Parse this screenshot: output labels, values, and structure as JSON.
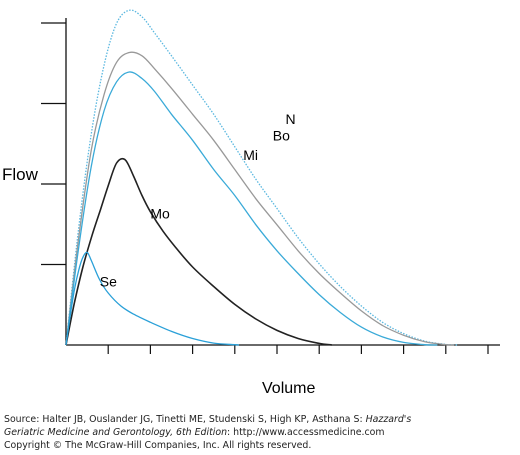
{
  "chart_data": {
    "type": "line",
    "title": "",
    "xlabel": "Volume",
    "ylabel": "Flow",
    "xlim": [
      0,
      10
    ],
    "ylim": [
      0,
      10
    ],
    "grid": false,
    "series": [
      {
        "name": "N",
        "color": "#5bb8e0",
        "dashed": true,
        "x": [
          0,
          0.3,
          0.6,
          0.9,
          1.2,
          1.5,
          1.8,
          2.1,
          2.5,
          3.0,
          3.5,
          4.0,
          4.5,
          5.0,
          5.5,
          6.0,
          6.5,
          7.0,
          7.5,
          8.0,
          8.5,
          9.0,
          9.3
        ],
        "y": [
          0,
          3.6,
          6.5,
          8.6,
          9.9,
          10.3,
          10.1,
          9.6,
          8.9,
          8.0,
          7.1,
          6.1,
          5.1,
          4.2,
          3.3,
          2.5,
          1.8,
          1.2,
          0.7,
          0.35,
          0.12,
          0.02,
          0
        ]
      },
      {
        "name": "Bo",
        "color": "#999999",
        "dashed": false,
        "x": [
          0,
          0.3,
          0.6,
          0.9,
          1.2,
          1.5,
          1.8,
          2.1,
          2.5,
          3.0,
          3.5,
          4.0,
          4.5,
          5.0,
          5.5,
          6.0,
          6.5,
          7.0,
          7.5,
          8.0,
          8.5,
          9.0,
          9.2
        ],
        "y": [
          0,
          3.3,
          6.0,
          7.7,
          8.7,
          9.0,
          8.9,
          8.5,
          7.9,
          7.1,
          6.3,
          5.4,
          4.5,
          3.7,
          2.9,
          2.2,
          1.6,
          1.05,
          0.6,
          0.3,
          0.1,
          0.01,
          0
        ]
      },
      {
        "name": "Mi",
        "color": "#3aaad8",
        "dashed": false,
        "x": [
          0,
          0.3,
          0.6,
          0.9,
          1.2,
          1.5,
          1.8,
          2.1,
          2.5,
          3.0,
          3.5,
          4.0,
          4.5,
          5.0,
          5.5,
          6.0,
          6.5,
          7.0,
          7.5,
          8.0,
          8.5,
          8.8
        ],
        "y": [
          0,
          3.0,
          5.5,
          7.2,
          8.1,
          8.4,
          8.2,
          7.8,
          7.1,
          6.3,
          5.4,
          4.6,
          3.7,
          2.9,
          2.2,
          1.55,
          1.0,
          0.55,
          0.25,
          0.08,
          0.01,
          0
        ]
      },
      {
        "name": "Mo",
        "color": "#222222",
        "dashed": false,
        "x": [
          0,
          0.2,
          0.4,
          0.6,
          0.8,
          1.0,
          1.2,
          1.4,
          1.6,
          1.8,
          2.0,
          2.3,
          2.6,
          3.0,
          3.5,
          4.0,
          4.5,
          5.0,
          5.5,
          6.0,
          6.3
        ],
        "y": [
          0,
          1.3,
          2.4,
          3.3,
          4.1,
          4.9,
          5.6,
          5.7,
          5.2,
          4.6,
          4.1,
          3.5,
          3.0,
          2.4,
          1.8,
          1.25,
          0.8,
          0.45,
          0.2,
          0.05,
          0
        ]
      },
      {
        "name": "Se",
        "color": "#2aa0d8",
        "dashed": false,
        "x": [
          0,
          0.1,
          0.2,
          0.3,
          0.4,
          0.5,
          0.6,
          0.8,
          1.0,
          1.3,
          1.6,
          2.0,
          2.5,
          3.0,
          3.5,
          4.0,
          4.1
        ],
        "y": [
          0,
          0.9,
          1.7,
          2.3,
          2.7,
          2.85,
          2.6,
          2.0,
          1.6,
          1.2,
          0.95,
          0.7,
          0.42,
          0.2,
          0.06,
          0.01,
          0
        ]
      }
    ],
    "curve_labels": [
      {
        "text": "N",
        "x": 5.2,
        "y": 6.8
      },
      {
        "text": "Bo",
        "x": 4.9,
        "y": 6.3
      },
      {
        "text": "Mi",
        "x": 4.2,
        "y": 5.7
      },
      {
        "text": "Mo",
        "x": 2.0,
        "y": 3.9
      },
      {
        "text": "Se",
        "x": 0.8,
        "y": 1.8
      }
    ],
    "x_ticks": [
      1,
      2,
      3,
      4,
      5,
      6,
      7,
      8,
      9,
      10
    ],
    "y_ticks": [
      2,
      4,
      6,
      8,
      10
    ]
  },
  "footer": {
    "source_prefix": "Source: Halter JB, Ouslander JG, Tinetti ME, Studenski S, High KP, Asthana S: ",
    "book_title": "Hazzard's",
    "book_title_cont": "Geriatric Medicine and Gerontology, 6th Edition",
    "url_text": ": http://www.accessmedicine.com",
    "copyright": "Copyright © The McGraw-Hill Companies, Inc. All rights reserved."
  }
}
